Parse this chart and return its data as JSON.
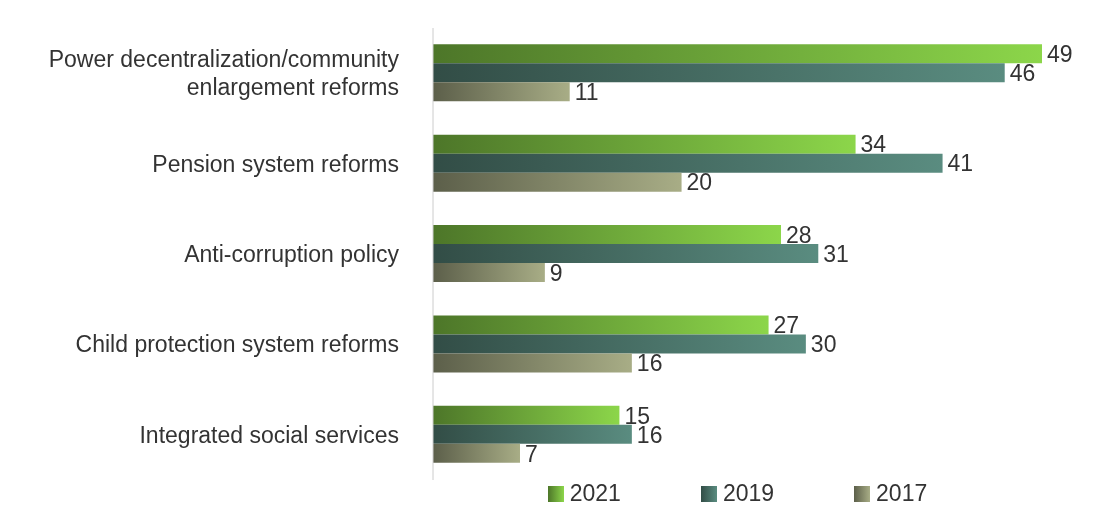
{
  "chart_data": {
    "type": "bar",
    "orientation": "horizontal",
    "categories": [
      "Power decentralization/community enlargement reforms",
      "Pension system reforms",
      "Anti-corruption policy",
      "Child protection system reforms",
      "Integrated social services"
    ],
    "series": [
      {
        "name": "2021",
        "color": "#8cd64a",
        "values": [
          49,
          34,
          28,
          27,
          15
        ]
      },
      {
        "name": "2019",
        "color": "#5a8c80",
        "values": [
          46,
          41,
          31,
          30,
          16
        ]
      },
      {
        "name": "2017",
        "color": "#a8ad86",
        "values": [
          11,
          20,
          9,
          16,
          7
        ]
      }
    ],
    "data_labels": true,
    "legend": "bottom"
  }
}
